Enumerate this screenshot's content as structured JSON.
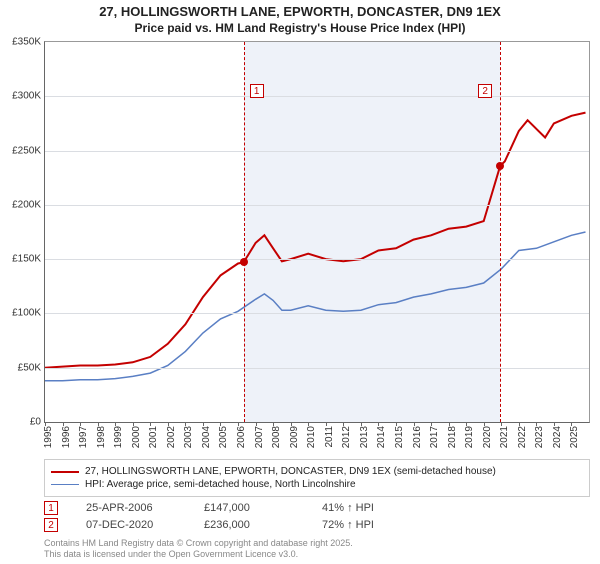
{
  "title_line1": "27, HOLLINGSWORTH LANE, EPWORTH, DONCASTER, DN9 1EX",
  "title_line2": "Price paid vs. HM Land Registry's House Price Index (HPI)",
  "chart": {
    "type": "line",
    "background_color": "#ffffff",
    "plot_region_bg": "#eef2f9",
    "plot_region_x_start_year": 2006.32,
    "plot_region_x_end_year": 2020.94,
    "grid_color": "#dadde2",
    "x_axis": {
      "min_year": 1995,
      "max_year": 2026,
      "ticks": [
        1995,
        1996,
        1997,
        1998,
        1999,
        2000,
        2001,
        2002,
        2003,
        2004,
        2005,
        2006,
        2007,
        2008,
        2009,
        2010,
        2011,
        2012,
        2013,
        2014,
        2015,
        2016,
        2017,
        2018,
        2019,
        2020,
        2021,
        2022,
        2023,
        2024,
        2025
      ],
      "label_fontsize": 10
    },
    "y_axis": {
      "min": 0,
      "max": 350000,
      "ticks": [
        0,
        50000,
        100000,
        150000,
        200000,
        250000,
        300000,
        350000
      ],
      "tick_labels": [
        "£0",
        "£50K",
        "£100K",
        "£150K",
        "£200K",
        "£250K",
        "£300K",
        "£350K"
      ],
      "label_fontsize": 10
    },
    "series": [
      {
        "id": "price_paid",
        "label": "27, HOLLINGSWORTH LANE, EPWORTH, DONCASTER, DN9 1EX (semi-detached house)",
        "color": "#c40000",
        "line_width": 2,
        "data": [
          [
            1995,
            50000
          ],
          [
            1996,
            51000
          ],
          [
            1997,
            52000
          ],
          [
            1998,
            52000
          ],
          [
            1999,
            53000
          ],
          [
            2000,
            55000
          ],
          [
            2001,
            60000
          ],
          [
            2002,
            72000
          ],
          [
            2003,
            90000
          ],
          [
            2004,
            115000
          ],
          [
            2005,
            135000
          ],
          [
            2006,
            146000
          ],
          [
            2006.32,
            147000
          ],
          [
            2007,
            165000
          ],
          [
            2007.5,
            172000
          ],
          [
            2008,
            160000
          ],
          [
            2008.5,
            148000
          ],
          [
            2009,
            150000
          ],
          [
            2010,
            155000
          ],
          [
            2011,
            150000
          ],
          [
            2012,
            148000
          ],
          [
            2013,
            150000
          ],
          [
            2014,
            158000
          ],
          [
            2015,
            160000
          ],
          [
            2016,
            168000
          ],
          [
            2017,
            172000
          ],
          [
            2018,
            178000
          ],
          [
            2019,
            180000
          ],
          [
            2020,
            185000
          ],
          [
            2020.94,
            236000
          ],
          [
            2021.2,
            240000
          ],
          [
            2022,
            268000
          ],
          [
            2022.5,
            278000
          ],
          [
            2023,
            270000
          ],
          [
            2023.5,
            262000
          ],
          [
            2024,
            275000
          ],
          [
            2025,
            282000
          ],
          [
            2025.8,
            285000
          ]
        ]
      },
      {
        "id": "hpi",
        "label": "HPI: Average price, semi-detached house, North Lincolnshire",
        "color": "#5a7fc4",
        "line_width": 1.5,
        "data": [
          [
            1995,
            38000
          ],
          [
            1996,
            38000
          ],
          [
            1997,
            39000
          ],
          [
            1998,
            39000
          ],
          [
            1999,
            40000
          ],
          [
            2000,
            42000
          ],
          [
            2001,
            45000
          ],
          [
            2002,
            52000
          ],
          [
            2003,
            65000
          ],
          [
            2004,
            82000
          ],
          [
            2005,
            95000
          ],
          [
            2006,
            102000
          ],
          [
            2007,
            113000
          ],
          [
            2007.5,
            118000
          ],
          [
            2008,
            112000
          ],
          [
            2008.5,
            103000
          ],
          [
            2009,
            103000
          ],
          [
            2010,
            107000
          ],
          [
            2011,
            103000
          ],
          [
            2012,
            102000
          ],
          [
            2013,
            103000
          ],
          [
            2014,
            108000
          ],
          [
            2015,
            110000
          ],
          [
            2016,
            115000
          ],
          [
            2017,
            118000
          ],
          [
            2018,
            122000
          ],
          [
            2019,
            124000
          ],
          [
            2020,
            128000
          ],
          [
            2021,
            141000
          ],
          [
            2022,
            158000
          ],
          [
            2023,
            160000
          ],
          [
            2024,
            166000
          ],
          [
            2025,
            172000
          ],
          [
            2025.8,
            175000
          ]
        ]
      }
    ],
    "transactions": [
      {
        "n": "1",
        "year": 2006.32,
        "date": "25-APR-2006",
        "price": 147000,
        "price_label": "£147,000",
        "delta_label": "41% ↑ HPI",
        "color": "#c40000"
      },
      {
        "n": "2",
        "year": 2020.94,
        "date": "07-DEC-2020",
        "price": 236000,
        "price_label": "£236,000",
        "delta_label": "72% ↑ HPI",
        "color": "#c40000"
      }
    ]
  },
  "legend": {
    "items": [
      {
        "color": "#c40000",
        "width": 2,
        "label": "27, HOLLINGSWORTH LANE, EPWORTH, DONCASTER, DN9 1EX (semi-detached house)"
      },
      {
        "color": "#5a7fc4",
        "width": 1.5,
        "label": "HPI: Average price, semi-detached house, North Lincolnshire"
      }
    ]
  },
  "footer_line1": "Contains HM Land Registry data © Crown copyright and database right 2025.",
  "footer_line2": "This data is licensed under the Open Government Licence v3.0."
}
